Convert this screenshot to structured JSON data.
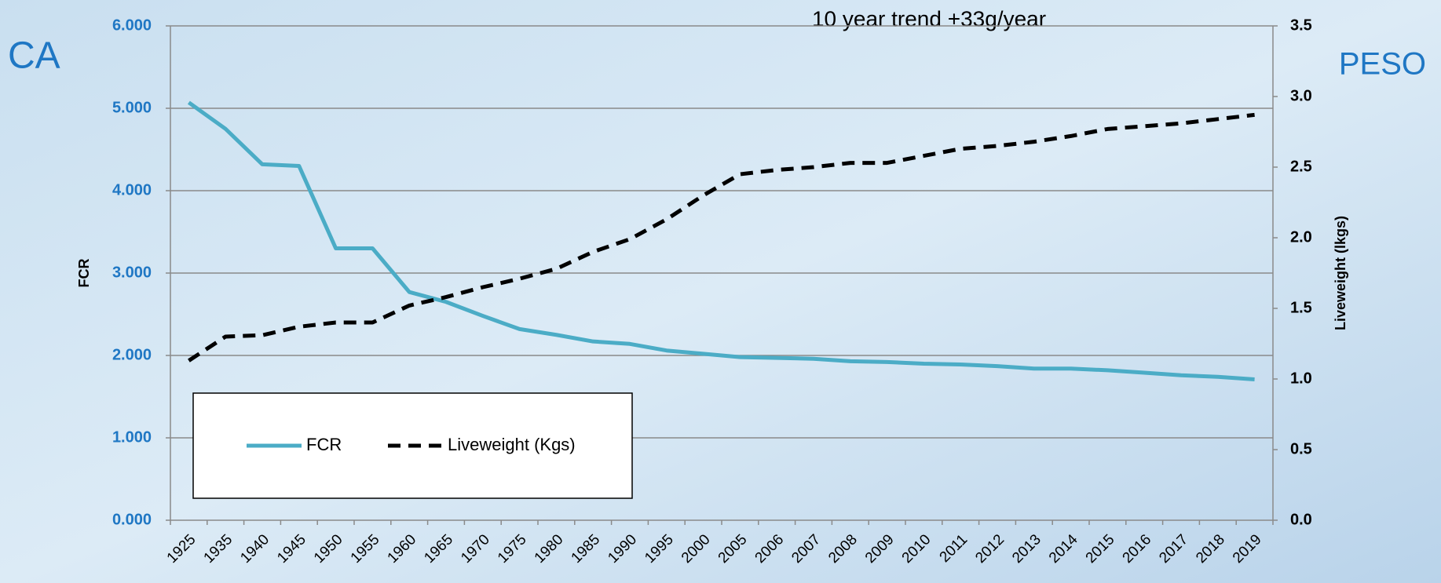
{
  "chart_data": {
    "type": "line",
    "annotation": "10 year trend +33g/year",
    "left_label": "CA",
    "right_label": "PESO",
    "ylabel": "FCR",
    "y2label": "Liveweight (lkgs)",
    "categories": [
      "1925",
      "1935",
      "1940",
      "1945",
      "1950",
      "1955",
      "1960",
      "1965",
      "1970",
      "1975",
      "1980",
      "1985",
      "1990",
      "1995",
      "2000",
      "2005",
      "2006",
      "2007",
      "2008",
      "2009",
      "2010",
      "2011",
      "2012",
      "2013",
      "2014",
      "2015",
      "2016",
      "2017",
      "2018",
      "2019"
    ],
    "series": [
      {
        "name": "FCR",
        "color": "#4bacc6",
        "dashed": false,
        "values": [
          5.07,
          4.75,
          4.32,
          4.3,
          3.3,
          3.3,
          2.77,
          2.65,
          2.48,
          2.32,
          2.25,
          2.17,
          2.14,
          2.06,
          2.02,
          1.98,
          1.97,
          1.96,
          1.93,
          1.92,
          1.9,
          1.89,
          1.87,
          1.84,
          1.84,
          1.82,
          1.79,
          1.76,
          1.74,
          1.71
        ]
      },
      {
        "name": "Liveweight (Kgs)",
        "color": "#000000",
        "dashed": true,
        "axis": "y2",
        "values": [
          1.13,
          1.3,
          1.31,
          1.37,
          1.4,
          1.4,
          1.52,
          1.58,
          1.65,
          1.71,
          1.78,
          1.9,
          1.99,
          2.13,
          2.3,
          2.45,
          2.48,
          2.5,
          2.53,
          2.53,
          2.58,
          2.63,
          2.65,
          2.68,
          2.72,
          2.77,
          2.79,
          2.81,
          2.84,
          2.87
        ]
      }
    ],
    "ylim": [
      0,
      6
    ],
    "yticks": [
      {
        "value": 0,
        "label": "0.000"
      },
      {
        "value": 1,
        "label": "1.000"
      },
      {
        "value": 2,
        "label": "2.000"
      },
      {
        "value": 3,
        "label": "3.000"
      },
      {
        "value": 4,
        "label": "4.000"
      },
      {
        "value": 5,
        "label": "5.000"
      },
      {
        "value": 6,
        "label": "6.000"
      }
    ],
    "y2lim": [
      0,
      3.5
    ],
    "y2ticks": [
      {
        "value": 0,
        "label": "0.0"
      },
      0.5,
      {
        "value": 1,
        "label": "1.0"
      },
      1.5,
      {
        "value": 2,
        "label": "2.0"
      },
      2.5,
      {
        "value": 3,
        "label": "3.0"
      },
      3.5
    ],
    "grid": true
  }
}
